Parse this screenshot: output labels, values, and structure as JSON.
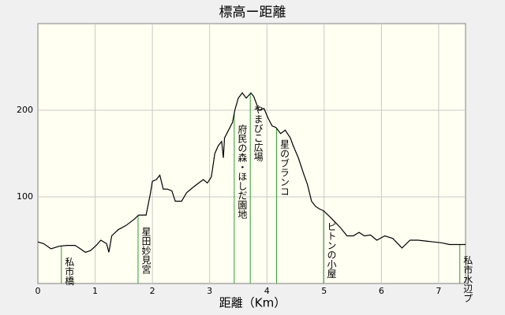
{
  "chart_data": {
    "type": "line",
    "title": "標高ー距離",
    "x_label": "距離（Km）",
    "x": [
      0,
      0.1,
      0.23,
      0.37,
      0.51,
      0.65,
      0.72,
      0.83,
      0.92,
      1.02,
      1.1,
      1.2,
      1.24,
      1.29,
      1.4,
      1.54,
      1.68,
      1.76,
      1.89,
      1.96,
      2.0,
      2.07,
      2.13,
      2.19,
      2.26,
      2.34,
      2.4,
      2.51,
      2.6,
      2.71,
      2.81,
      2.89,
      2.96,
      3.03,
      3.09,
      3.15,
      3.21,
      3.24,
      3.26,
      3.33,
      3.4,
      3.44,
      3.5,
      3.57,
      3.64,
      3.72,
      3.77,
      3.86,
      3.95,
      4.02,
      4.09,
      4.16,
      4.24,
      4.32,
      4.41,
      4.46,
      4.55,
      4.64,
      4.71,
      4.78,
      4.85,
      4.92,
      4.99,
      5.1,
      5.19,
      5.29,
      5.4,
      5.51,
      5.61,
      5.7,
      5.81,
      5.92,
      6.06,
      6.2,
      6.36,
      6.5,
      6.64,
      6.78,
      6.91,
      7.05,
      7.19,
      7.4,
      7.47
    ],
    "series": [
      {
        "color": "#000000",
        "values": [
          48,
          46,
          40,
          43,
          44,
          44,
          41,
          36,
          38,
          44,
          50,
          46,
          36,
          55,
          62,
          67,
          74,
          79,
          79,
          102,
          118,
          120,
          125,
          109,
          109,
          107,
          95,
          95,
          105,
          111,
          116,
          120,
          116,
          123,
          150,
          159,
          164,
          145,
          168,
          177,
          186,
          200,
          214,
          220,
          214,
          220,
          216,
          200,
          202,
          191,
          182,
          180,
          173,
          177,
          168,
          159,
          145,
          127,
          114,
          95,
          89,
          86,
          84,
          77,
          71,
          64,
          55,
          55,
          59,
          55,
          56,
          50,
          55,
          52,
          41,
          50,
          50,
          49,
          48,
          47,
          45,
          45,
          45
        ]
      }
    ],
    "xlim": [
      0,
      7.47
    ],
    "xticks": [
      0,
      1,
      2,
      3,
      4,
      5,
      6,
      7
    ],
    "ylim": [
      0,
      300
    ],
    "yticks": [
      100,
      200
    ],
    "grid": true,
    "annotations": [
      {
        "x": 0.41,
        "label": "私市橋"
      },
      {
        "x": 1.75,
        "label": "星田妙見宮"
      },
      {
        "x": 3.43,
        "label": "府民の森・ほしだ園地"
      },
      {
        "x": 3.71,
        "label": "やまびこ広場"
      },
      {
        "x": 4.17,
        "label": "星のブランコ"
      },
      {
        "x": 4.99,
        "label": "ピトンの小屋"
      },
      {
        "x": 7.37,
        "label": "私市水辺プ"
      }
    ],
    "annotation_color": "#2e9e2e"
  }
}
